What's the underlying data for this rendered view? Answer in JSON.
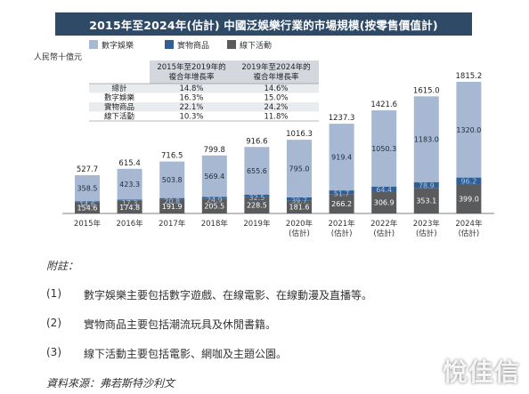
{
  "colors": {
    "digital": "#a6b8d2",
    "physical": "#2f5f95",
    "offline": "#5a5b5d",
    "title_bg": "#2f4a67"
  },
  "chart_data": {
    "type": "bar",
    "stacked": true,
    "title": "2015年至2024年(估計) 中國泛娛樂行業的市場規模(按零售價值計)",
    "ylabel": "人民幣十億元",
    "categories": [
      "2015年",
      "2016年",
      "2017年",
      "2018年",
      "2019年",
      "2020年\n(估計)",
      "2021年\n(估計)",
      "2022年\n(估計)",
      "2023年\n(估計)",
      "2024年\n(估計)"
    ],
    "series": [
      {
        "name": "線下活動",
        "values": [
          154.6,
          174.8,
          191.9,
          205.5,
          228.5,
          181.6,
          266.2,
          306.9,
          353.1,
          399.0
        ]
      },
      {
        "name": "實物商品",
        "values": [
          14.6,
          17.3,
          20.8,
          24.9,
          32.5,
          39.7,
          51.7,
          64.4,
          78.9,
          96.2
        ]
      },
      {
        "name": "數字娛樂",
        "values": [
          358.5,
          423.3,
          503.8,
          569.4,
          655.6,
          795.0,
          919.4,
          1050.3,
          1183.0,
          1320.0
        ]
      }
    ],
    "totals": [
      527.7,
      615.4,
      716.5,
      799.8,
      916.6,
      1016.3,
      1237.3,
      1421.6,
      1615.0,
      1815.2
    ],
    "ylim": [
      0,
      1815.2
    ],
    "legend_position": "top-left",
    "growth_table": {
      "headers": [
        "",
        "2015年至2019年的\n複合年增長率",
        "2019年至2024年的\n複合年增長率"
      ],
      "rows": [
        [
          "總計",
          "14.8%",
          "14.6%"
        ],
        [
          "數字娛樂",
          "16.3%",
          "15.0%"
        ],
        [
          "實物商品",
          "22.1%",
          "24.2%"
        ],
        [
          "線下活動",
          "10.3%",
          "11.8%"
        ]
      ]
    }
  },
  "notes": {
    "title": "附註：",
    "items": [
      {
        "num": "(1)",
        "text": "數字娛樂主要包括數字遊戲、在線電影、在線動漫及直播等。"
      },
      {
        "num": "(2)",
        "text": "實物商品主要包括潮流玩具及休閒書籍。"
      },
      {
        "num": "(3)",
        "text": "線下活動主要包括電影、網咖及主題公園。"
      }
    ],
    "source": "資料來源：弗若斯特沙利文"
  },
  "watermark": "悅佳信"
}
